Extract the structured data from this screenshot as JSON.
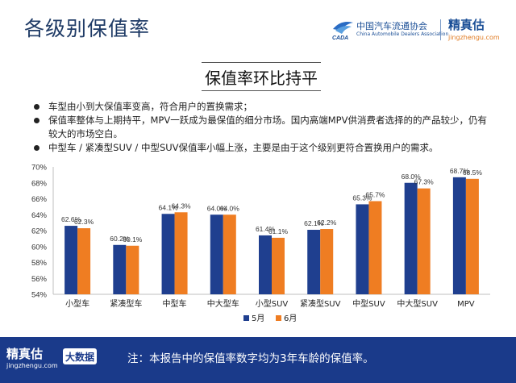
{
  "header": {
    "title": "各级别保值率",
    "caada_cn": "中国汽车流通协会",
    "caada_en": "China Automobile Dealers Association",
    "caada_mark_text": "CADA",
    "brand_name": "精真估",
    "brand_url": "jingzhengu.com"
  },
  "subtitle": "保值率环比持平",
  "bullets": [
    "车型由小到大保值率变高，符合用户的置换需求；",
    "保值率整体与上期持平，MPV一跃成为最保值的细分市场。国内高端MPV供消费者选择的的产品较少，仍有较大的市场空白。",
    "中型车 / 紧凑型SUV / 中型SUV保值率小幅上涨，主要是由于这个级别更符合置换用户的需求。"
  ],
  "chart_data": {
    "type": "bar",
    "categories": [
      "小型车",
      "紧凑型车",
      "中型车",
      "中大型车",
      "小型SUV",
      "紧凑型SUV",
      "中型SUV",
      "中大型SUV",
      "MPV"
    ],
    "series": [
      {
        "name": "5月",
        "color": "#1f3f8f",
        "values": [
          62.6,
          60.2,
          64.1,
          64.0,
          61.4,
          62.1,
          65.3,
          68.0,
          68.7
        ]
      },
      {
        "name": "6月",
        "color": "#ef7d22",
        "values": [
          62.3,
          60.1,
          64.3,
          64.0,
          61.1,
          62.2,
          65.7,
          67.3,
          68.5
        ]
      }
    ],
    "ylim": [
      54,
      70
    ],
    "yticks": [
      "54%",
      "56%",
      "58%",
      "60%",
      "62%",
      "64%",
      "66%",
      "68%",
      "70%"
    ],
    "y_unit": "%",
    "legend": "bottom",
    "grid": false
  },
  "footer": {
    "brand_name": "精真估",
    "brand_url": "jingzhengu.com",
    "badge": "大数据",
    "note": "注：本报告中的保值率数字均为3年车龄的保值率。"
  },
  "colors": {
    "title": "#1f3b66",
    "footer_bg": "#1a3a8a",
    "accent_orange": "#ef7d22",
    "accent_blue": "#1f3f8f"
  }
}
